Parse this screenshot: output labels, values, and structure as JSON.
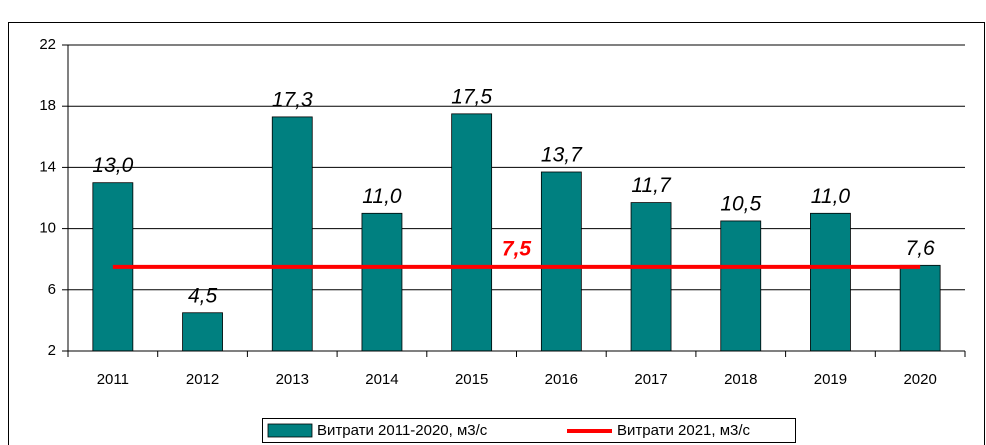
{
  "chart_data": {
    "type": "bar",
    "categories": [
      "2011",
      "2012",
      "2013",
      "2014",
      "2015",
      "2016",
      "2017",
      "2018",
      "2019",
      "2020"
    ],
    "series": [
      {
        "name": "Витрати 2011-2020, м3/с",
        "color": "#008080",
        "values": [
          13.0,
          4.5,
          17.3,
          11.0,
          17.5,
          13.7,
          11.7,
          10.5,
          11.0,
          7.6
        ],
        "value_labels": [
          "13,0",
          "4,5",
          "17,3",
          "11,0",
          "17,5",
          "13,7",
          "11,7",
          "10,5",
          "11,0",
          "7,6"
        ]
      },
      {
        "name": "Витрати 2021, м3/с",
        "color": "#ff0000",
        "type": "hline",
        "value": 7.5,
        "value_label": "7,5"
      }
    ],
    "ylim": [
      2,
      22
    ],
    "yticks": [
      2,
      6,
      10,
      14,
      18,
      22
    ],
    "grid": true,
    "legend": "bottom"
  }
}
